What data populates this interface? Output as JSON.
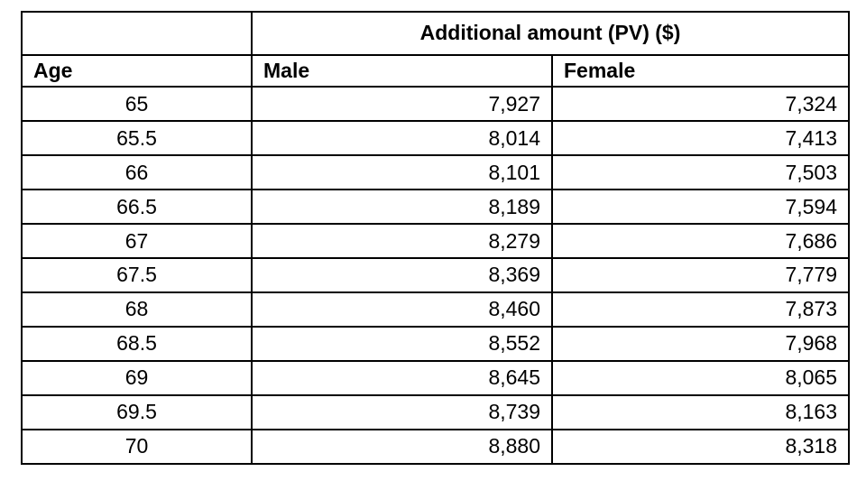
{
  "table": {
    "spanning_header": "Additional amount (PV) ($)",
    "col_headers": {
      "age": "Age",
      "male": "Male",
      "female": "Female"
    },
    "rows": [
      {
        "age": "65",
        "male": "7,927",
        "female": "7,324"
      },
      {
        "age": "65.5",
        "male": "8,014",
        "female": "7,413"
      },
      {
        "age": "66",
        "male": "8,101",
        "female": "7,503"
      },
      {
        "age": "66.5",
        "male": "8,189",
        "female": "7,594"
      },
      {
        "age": "67",
        "male": "8,279",
        "female": "7,686"
      },
      {
        "age": "67.5",
        "male": "8,369",
        "female": "7,779"
      },
      {
        "age": "68",
        "male": "8,460",
        "female": "7,873"
      },
      {
        "age": "68.5",
        "male": "8,552",
        "female": "7,968"
      },
      {
        "age": "69",
        "male": "8,645",
        "female": "8,065"
      },
      {
        "age": "69.5",
        "male": "8,739",
        "female": "8,163"
      },
      {
        "age": "70",
        "male": "8,880",
        "female": "8,318"
      }
    ],
    "colors": {
      "border": "#000000",
      "text": "#000000",
      "background": "#ffffff"
    }
  }
}
